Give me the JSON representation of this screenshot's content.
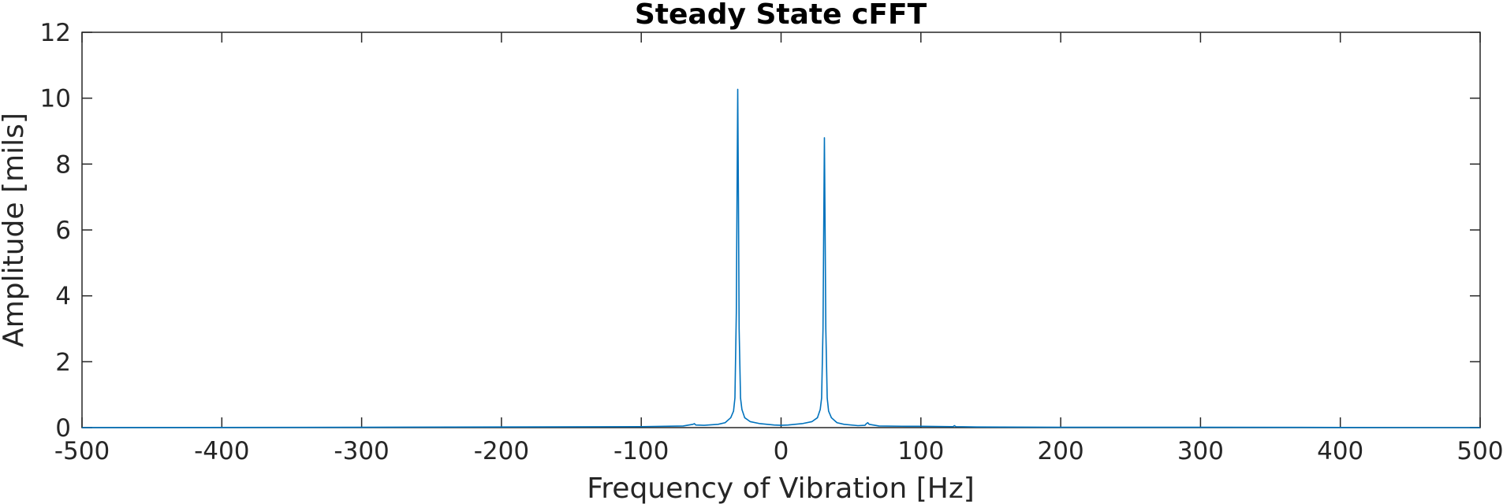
{
  "chart_data": {
    "type": "line",
    "title": "Steady State cFFT",
    "xlabel": "Frequency of Vibration [Hz]",
    "ylabel": "Amplitude [mils]",
    "xlim": [
      -500,
      500
    ],
    "ylim": [
      0,
      12
    ],
    "xticks": [
      -500,
      -400,
      -300,
      -200,
      -100,
      0,
      100,
      200,
      300,
      400,
      500
    ],
    "xtick_labels": [
      "-500",
      "-400",
      "-300",
      "-200",
      "-100",
      "0",
      "100",
      "200",
      "300",
      "400",
      "500"
    ],
    "yticks": [
      0,
      2,
      4,
      6,
      8,
      10,
      12
    ],
    "ytick_labels": [
      "0",
      "2",
      "4",
      "6",
      "8",
      "10",
      "12"
    ],
    "grid": false,
    "series": [
      {
        "color": "#0072BD",
        "x": [
          -500,
          -300,
          -200,
          -100,
          -70,
          -63,
          -62,
          -61,
          -55,
          -45,
          -40,
          -36,
          -34,
          -33,
          -32,
          -31.5,
          -31,
          -30.5,
          -30,
          -29,
          -28,
          -26,
          -22,
          -15,
          -5,
          0,
          5,
          15,
          22,
          26,
          28,
          29,
          30,
          30.5,
          31,
          31.5,
          32,
          33,
          34,
          36,
          40,
          45,
          55,
          60,
          61,
          62,
          63,
          70,
          90,
          100,
          123,
          124,
          125,
          140,
          200,
          300,
          400,
          500
        ],
        "y": [
          0,
          0.01,
          0.02,
          0.03,
          0.05,
          0.1,
          0.12,
          0.08,
          0.07,
          0.1,
          0.15,
          0.3,
          0.5,
          0.9,
          3.5,
          7.0,
          10.27,
          7.0,
          3.0,
          0.9,
          0.55,
          0.3,
          0.18,
          0.12,
          0.08,
          0.07,
          0.08,
          0.12,
          0.18,
          0.3,
          0.55,
          0.9,
          3.0,
          6.0,
          8.8,
          6.0,
          3.0,
          0.9,
          0.5,
          0.3,
          0.15,
          0.1,
          0.06,
          0.07,
          0.12,
          0.15,
          0.1,
          0.05,
          0.04,
          0.04,
          0.03,
          0.06,
          0.03,
          0.02,
          0.01,
          0.01,
          0.005,
          0
        ]
      }
    ]
  }
}
